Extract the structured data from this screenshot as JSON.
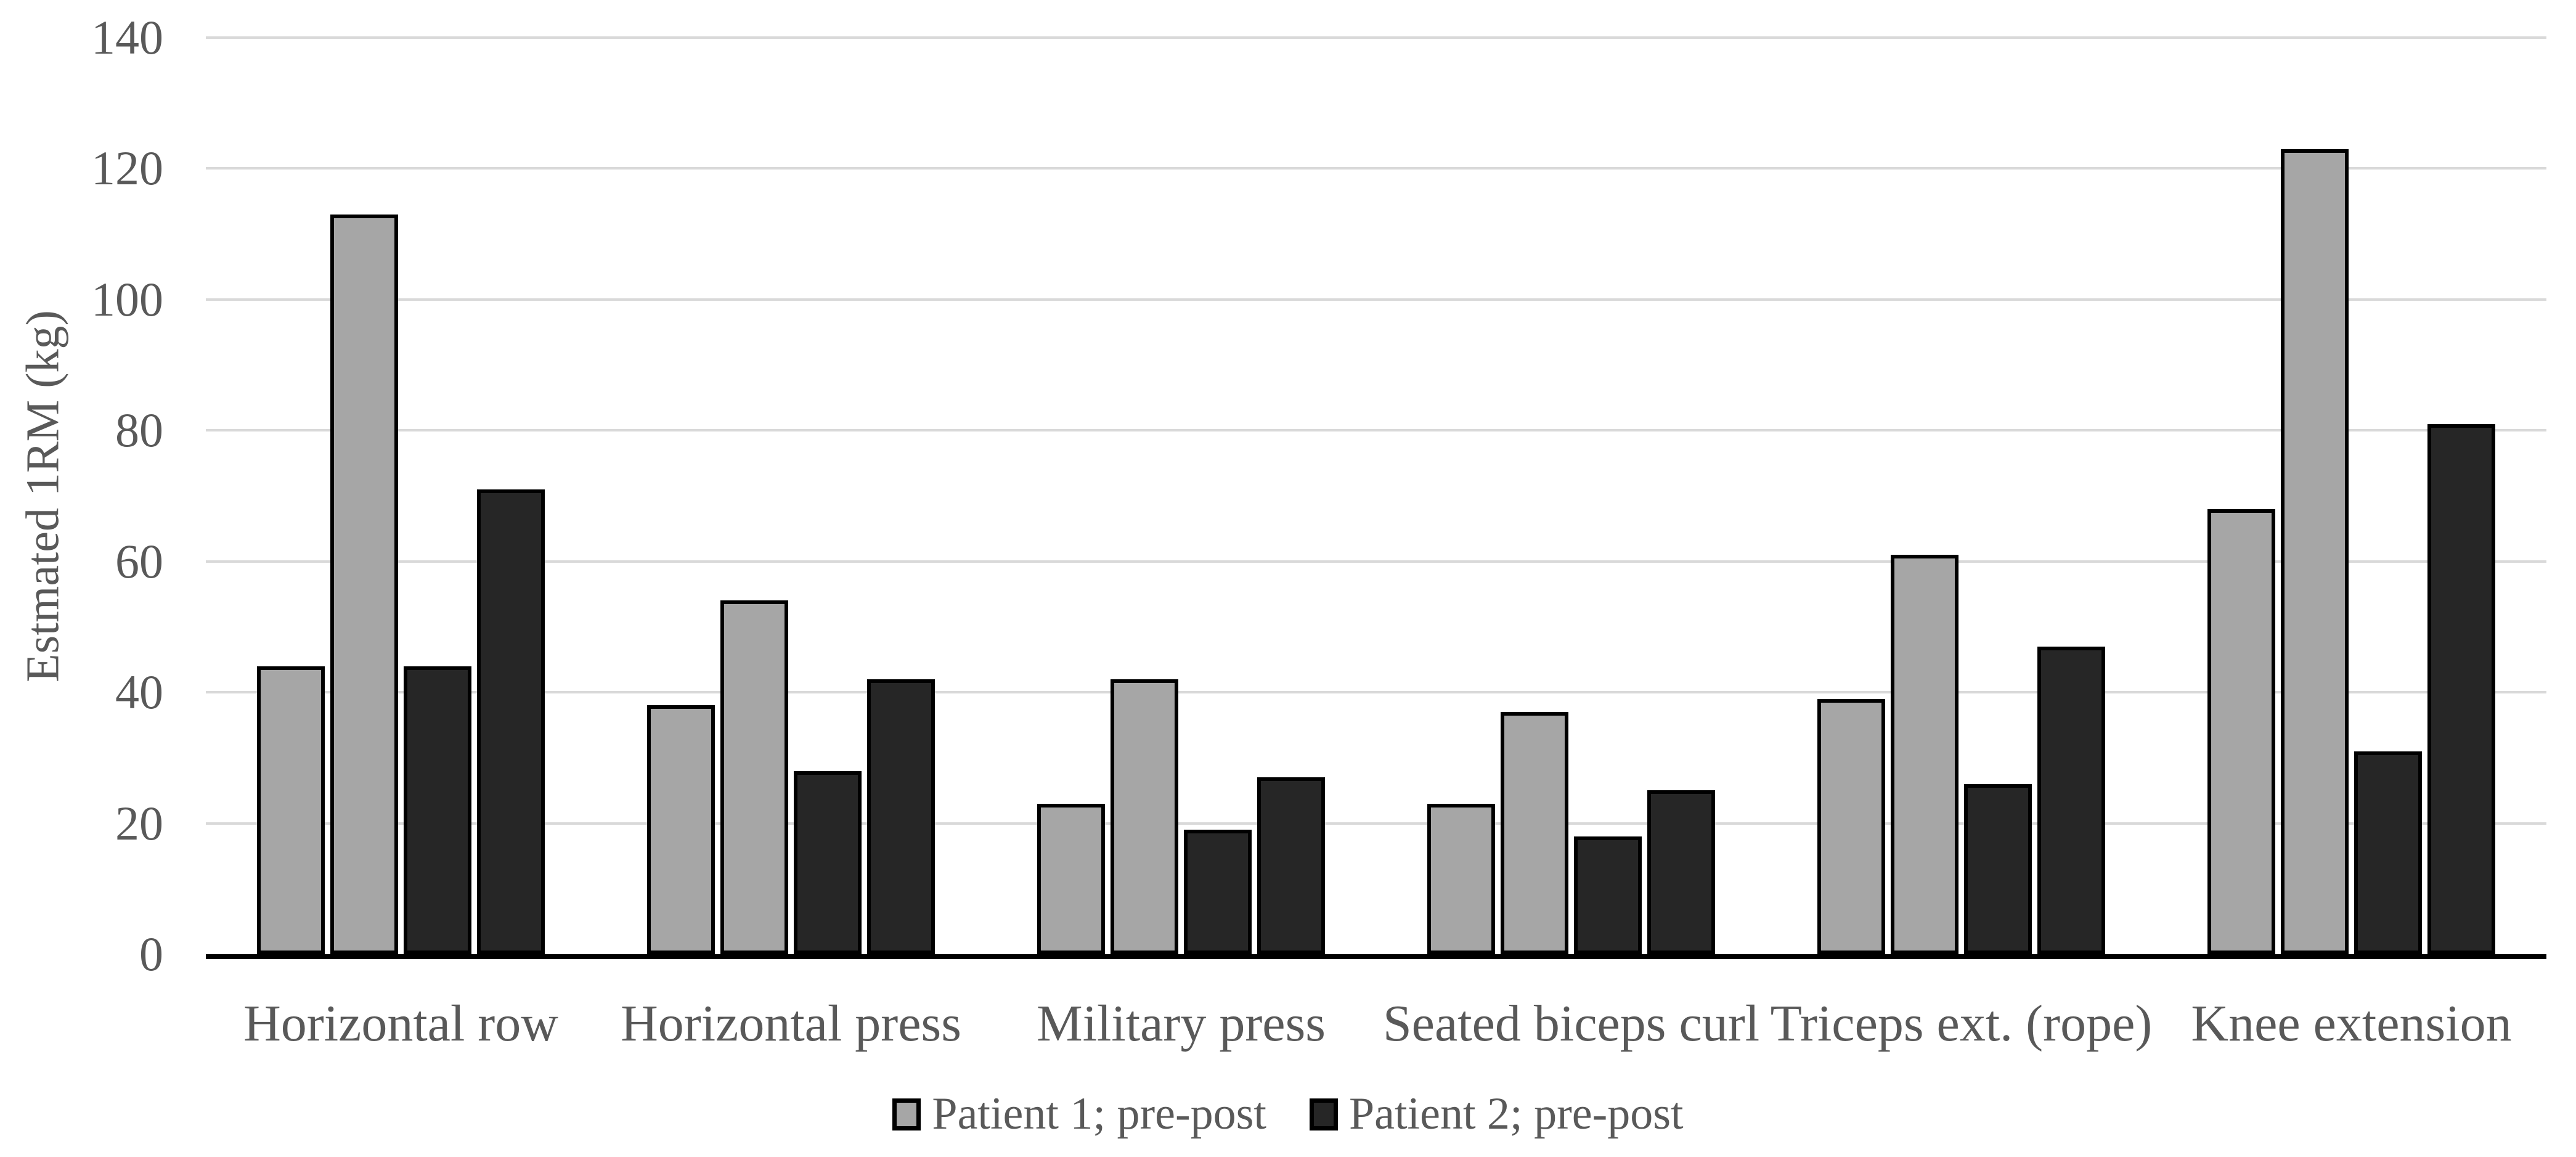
{
  "figure": {
    "background": "#ffffff",
    "text_color": "#595959",
    "gridline_color": "#d9d9d9",
    "axis_color": "#000000",
    "bar_border_color": "#000000"
  },
  "chart_data": {
    "type": "bar",
    "title": "",
    "xlabel": "",
    "ylabel": "Estmated 1RM (kg)",
    "ylim": [
      0,
      140
    ],
    "ytick_interval": 20,
    "yticks": [
      0,
      20,
      40,
      60,
      80,
      100,
      120,
      140
    ],
    "grid": "horizontal-only",
    "legend_position": "bottom-center",
    "categories": [
      "Horizontal row",
      "Horizontal press",
      "Military press",
      "Seated biceps curl",
      "Triceps ext. (rope)",
      "Knee extension"
    ],
    "series": [
      {
        "name": "Patient 1; pre",
        "color": "#a6a6a6",
        "values": [
          44,
          38,
          23,
          23,
          39,
          68
        ]
      },
      {
        "name": "Patient 1; post",
        "color": "#a6a6a6",
        "values": [
          113,
          54,
          42,
          37,
          61,
          123
        ]
      },
      {
        "name": "Patient 2; pre",
        "color": "#262626",
        "values": [
          44,
          28,
          19,
          18,
          26,
          31
        ]
      },
      {
        "name": "Patient 2; post",
        "color": "#262626",
        "values": [
          71,
          42,
          27,
          25,
          47,
          81
        ]
      }
    ],
    "legend": [
      {
        "label": "Patient 1; pre-post",
        "color": "#a6a6a6"
      },
      {
        "label": "Patient 2; pre-post",
        "color": "#262626"
      }
    ]
  }
}
